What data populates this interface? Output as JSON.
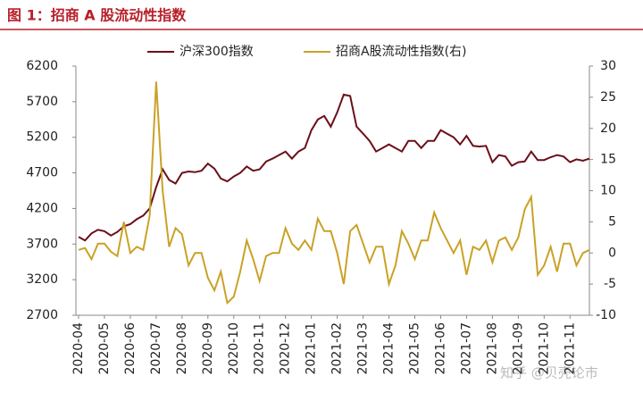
{
  "title": "图 1：招商 A 股流动性指数",
  "watermark": "知乎 @贝壳论市",
  "chart_data": {
    "type": "line",
    "categories": [
      "2020-04",
      null,
      null,
      null,
      "2020-05",
      null,
      null,
      null,
      "2020-06",
      null,
      null,
      null,
      "2020-07",
      null,
      null,
      null,
      "2020-08",
      null,
      null,
      null,
      "2020-09",
      null,
      null,
      null,
      "2020-10",
      null,
      null,
      null,
      "2020-11",
      null,
      null,
      null,
      "2020-12",
      null,
      null,
      null,
      "2021-01",
      null,
      null,
      null,
      "2021-02",
      null,
      null,
      null,
      "2021-03",
      null,
      null,
      null,
      "2021-04",
      null,
      null,
      null,
      "2021-05",
      null,
      null,
      null,
      "2021-06",
      null,
      null,
      null,
      "2021-07",
      null,
      null,
      null,
      "2021-08",
      null,
      null,
      null,
      "2021-09",
      null,
      null,
      null,
      "2021-10",
      null,
      null,
      null,
      "2021-11",
      null,
      null,
      null
    ],
    "series": [
      {
        "name": "沪深300指数",
        "color": "#6b0f1a",
        "values": [
          3800,
          3750,
          3850,
          3900,
          3880,
          3820,
          3870,
          3950,
          3980,
          4050,
          4100,
          4200,
          4500,
          4750,
          4600,
          4550,
          4700,
          4720,
          4710,
          4730,
          4830,
          4760,
          4620,
          4580,
          4650,
          4700,
          4790,
          4730,
          4750,
          4860,
          4900,
          4950,
          5000,
          4900,
          5000,
          5050,
          5300,
          5450,
          5500,
          5350,
          5550,
          5800,
          5780,
          5350,
          5250,
          5150,
          5000,
          5050,
          5100,
          5050,
          5000,
          5150,
          5150,
          5050,
          5150,
          5150,
          5300,
          5250,
          5200,
          5100,
          5220,
          5080,
          5070,
          5080,
          4850,
          4950,
          4930,
          4800,
          4850,
          4860,
          5000,
          4880,
          4880,
          4920,
          4950,
          4930,
          4850,
          4890,
          4870,
          4900
        ]
      },
      {
        "name": "招商A股流动性指数(右)",
        "color": "#c9a227",
        "axis": "y2",
        "values": [
          0.5,
          0.8,
          -1,
          1.5,
          1.5,
          0.2,
          -0.5,
          5,
          0,
          1,
          0.5,
          6,
          27.5,
          10,
          1,
          4,
          3,
          -2,
          0,
          0,
          -4,
          -6,
          -3,
          -8,
          -7,
          -3,
          2,
          -1,
          -4.5,
          -0.5,
          0,
          0,
          4,
          1.5,
          0.5,
          2,
          0.5,
          5.5,
          3.5,
          3.5,
          0,
          -5,
          3.5,
          4.5,
          1.5,
          -1.5,
          1,
          1,
          -5,
          -2,
          3.5,
          1.5,
          -1,
          2,
          2,
          6.5,
          4,
          2,
          0,
          2,
          -3.5,
          1,
          0.5,
          2,
          -1.5,
          2,
          2.5,
          0.5,
          2.5,
          7,
          9,
          -3.5,
          -2,
          1,
          -3,
          1.5,
          1.5,
          -2,
          0,
          0.5
        ]
      }
    ],
    "ylim": [
      2700,
      6200
    ],
    "yticks": [
      2700,
      3200,
      3700,
      4200,
      4700,
      5200,
      5700,
      6200
    ],
    "y2lim": [
      -10,
      30
    ],
    "y2ticks": [
      -10,
      -5,
      0,
      5,
      10,
      15,
      20,
      25,
      30
    ],
    "grid": false
  }
}
